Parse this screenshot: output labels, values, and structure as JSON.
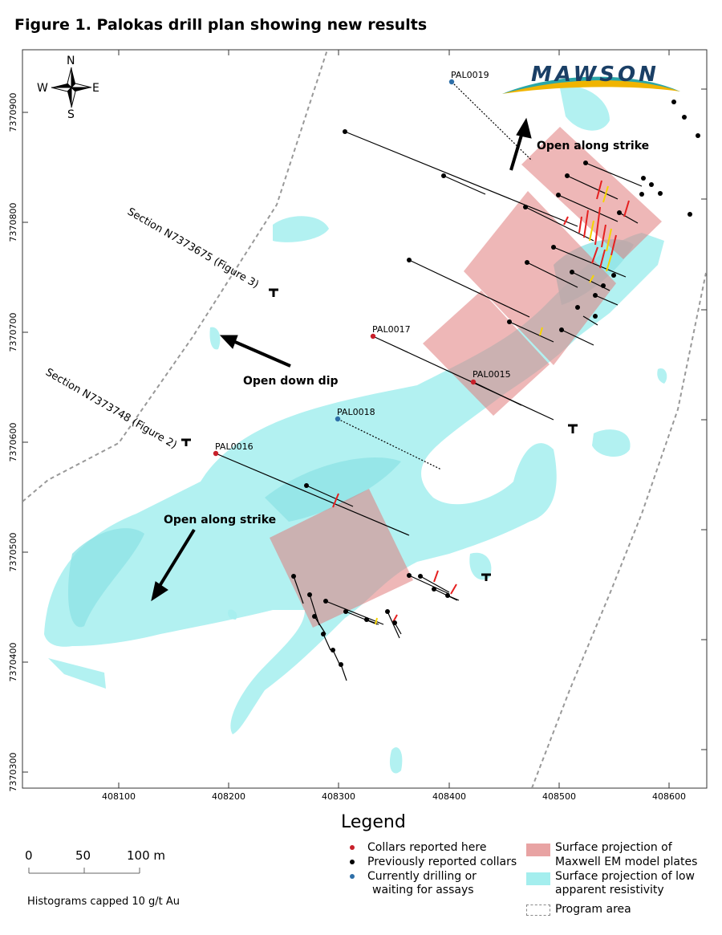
{
  "title": "Figure 1. Palokas drill plan showing new results",
  "brand": {
    "logo_text": "MAWSON",
    "colors": {
      "navy": "#1a3f66",
      "teal": "#2aa6a8",
      "gold": "#f0b400"
    }
  },
  "compass": {
    "n": "N",
    "s": "S",
    "e": "E",
    "w": "W"
  },
  "x_ticks": [
    "408100",
    "408200",
    "408300",
    "408400",
    "408500",
    "408600"
  ],
  "y_ticks": [
    "7370900",
    "7370800",
    "7370700",
    "7370600",
    "7370500",
    "7370400",
    "7370300"
  ],
  "collars_new": [
    "PAL0015",
    "PAL0016",
    "PAL0017"
  ],
  "collars_pending": [
    "PAL0018",
    "PAL0019"
  ],
  "sections": [
    "Section N7373675 (Figure 3)",
    "Section N7373748 (Figure 2)"
  ],
  "annotations": {
    "open_strike_ne": "Open along strike",
    "open_down_dip": "Open down dip",
    "open_strike_sw": "Open along strike"
  },
  "legend": {
    "title": "Legend",
    "collars_reported_here": "Collars reported here",
    "previously_reported": "Previously reported collars",
    "drilling_line1": "Currently drilling or",
    "drilling_line2": "waiting for assays",
    "em_line1": "Surface projection of",
    "em_line2": "Maxwell EM model plates",
    "res_line1": "Surface projection of low",
    "res_line2": "apparent resistivity",
    "program_area": "Program area",
    "colors": {
      "new": "#c8202a",
      "previous": "#000000",
      "pending": "#2e6fa8",
      "em": "#e8a3a3",
      "resistivity": "#a4eeee"
    }
  },
  "scale_bar": {
    "labels": [
      "0",
      "50",
      "100 m"
    ]
  },
  "histogram_note": "Histograms capped 10 g/t Au"
}
